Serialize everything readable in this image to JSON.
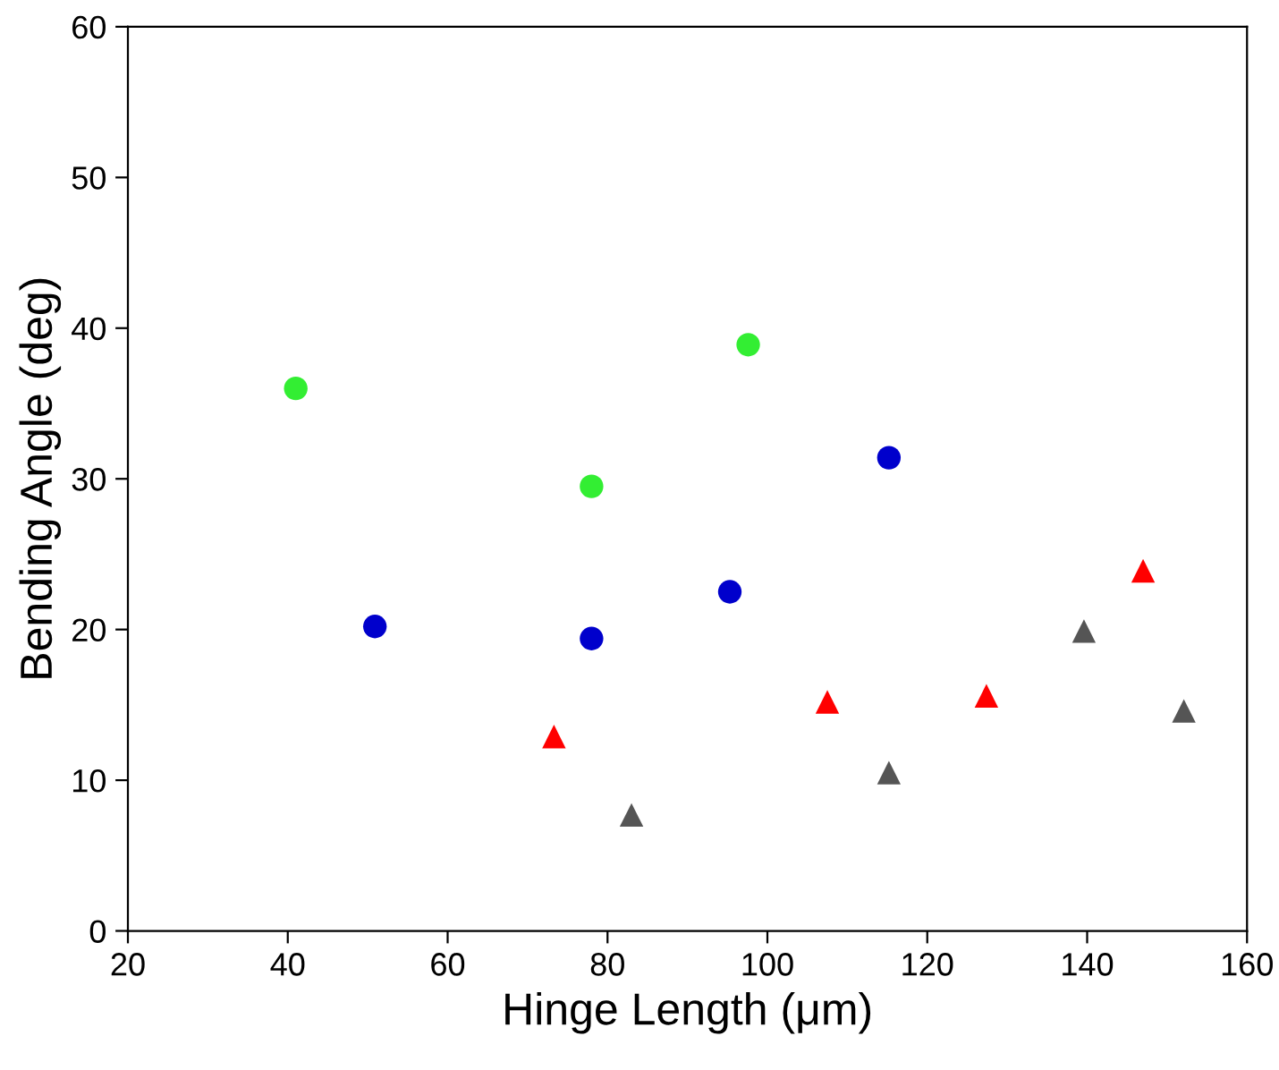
{
  "chart_data": {
    "type": "scatter",
    "xlabel": "Hinge Length (μm)",
    "ylabel": "Bending Angle (deg)",
    "xlim": [
      20,
      160
    ],
    "xticks": [
      20,
      40,
      60,
      80,
      100,
      120,
      140,
      160
    ],
    "ylim": [
      0,
      60
    ],
    "yticks": [
      0,
      10,
      20,
      30,
      40,
      50,
      60
    ],
    "grid": false,
    "series": [
      {
        "color": "#33ee33",
        "marker": "circle",
        "x": [
          41,
          78,
          97.6
        ],
        "values": [
          36,
          29.5,
          38.9
        ]
      },
      {
        "color": "#0000cc",
        "marker": "circle",
        "x": [
          50.9,
          78,
          95.3,
          115.2
        ],
        "values": [
          20.2,
          19.4,
          22.5,
          31.4
        ]
      },
      {
        "color": "#ff0000",
        "marker": "triangle",
        "x": [
          73.3,
          107.5,
          127.4,
          147
        ],
        "values": [
          12.9,
          15.2,
          15.6,
          23.9
        ]
      },
      {
        "color": "#555555",
        "marker": "triangle",
        "x": [
          83,
          115.2,
          139.6,
          152.1
        ],
        "values": [
          7.7,
          10.5,
          19.9,
          14.6
        ]
      }
    ]
  }
}
